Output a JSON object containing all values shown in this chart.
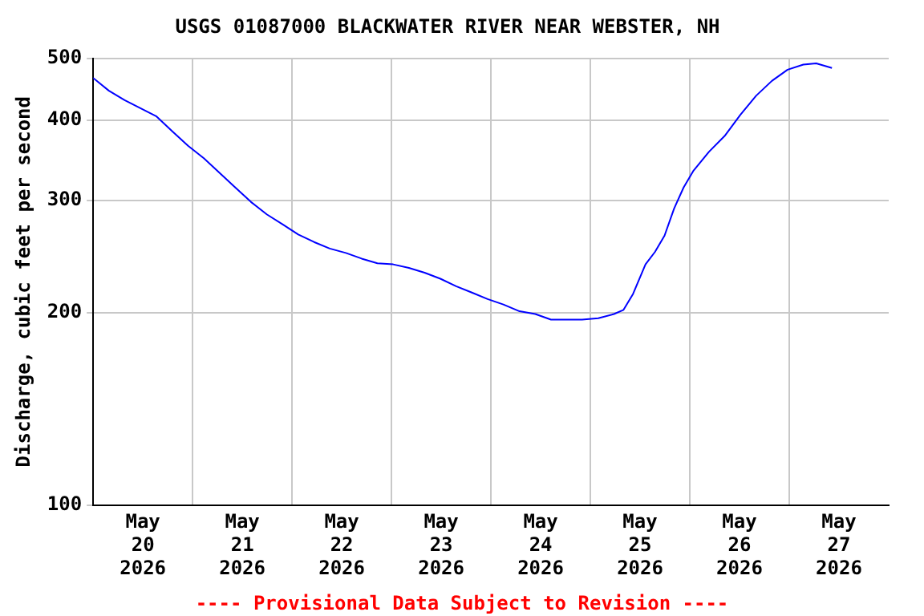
{
  "chart_data": {
    "type": "line",
    "title": "USGS 01087000 BLACKWATER RIVER NEAR WEBSTER, NH",
    "ylabel": "Discharge, cubic feet per second",
    "annotations": [
      "---- Provisional Data Subject to Revision ----"
    ],
    "log": true,
    "grid": true,
    "legend": false,
    "marker": "none",
    "line_style": "solid",
    "xlim": [
      "2026-05-20T00:00",
      "2026-05-28T00:00"
    ],
    "xticks": [
      {
        "value": "2026-05-20T12:00",
        "label": "May\n20\n2026"
      },
      {
        "value": "2026-05-21T00:00",
        "label": null
      },
      {
        "value": "2026-05-21T12:00",
        "label": "May\n21\n2026"
      },
      {
        "value": "2026-05-22T00:00",
        "label": null
      },
      {
        "value": "2026-05-22T12:00",
        "label": "May\n22\n2026"
      },
      {
        "value": "2026-05-23T00:00",
        "label": null
      },
      {
        "value": "2026-05-23T12:00",
        "label": "May\n23\n2026"
      },
      {
        "value": "2026-05-24T00:00",
        "label": null
      },
      {
        "value": "2026-05-24T12:00",
        "label": "May\n24\n2026"
      },
      {
        "value": "2026-05-25T00:00",
        "label": null
      },
      {
        "value": "2026-05-25T12:00",
        "label": "May\n25\n2026"
      },
      {
        "value": "2026-05-26T00:00",
        "label": null
      },
      {
        "value": "2026-05-26T12:00",
        "label": "May\n26\n2026"
      },
      {
        "value": "2026-05-27T00:00",
        "label": null
      },
      {
        "value": "2026-05-27T12:00",
        "label": "May\n27\n2026"
      }
    ],
    "ylim": [
      100,
      500
    ],
    "yticks": [
      100,
      200,
      300,
      400,
      500
    ],
    "x": [
      "2026-05-20T00:00",
      "2026-05-20T03:48",
      "2026-05-20T07:36",
      "2026-05-20T11:24",
      "2026-05-20T15:12",
      "2026-05-20T19:00",
      "2026-05-20T22:54",
      "2026-05-21T02:42",
      "2026-05-21T06:30",
      "2026-05-21T10:18",
      "2026-05-21T14:06",
      "2026-05-21T17:54",
      "2026-05-21T21:42",
      "2026-05-22T01:30",
      "2026-05-22T05:18",
      "2026-05-22T09:06",
      "2026-05-22T13:00",
      "2026-05-22T16:48",
      "2026-05-22T20:36",
      "2026-05-23T00:24",
      "2026-05-23T04:12",
      "2026-05-23T08:00",
      "2026-05-23T11:48",
      "2026-05-23T15:36",
      "2026-05-23T19:24",
      "2026-05-23T23:12",
      "2026-05-24T03:00",
      "2026-05-24T06:54",
      "2026-05-24T10:42",
      "2026-05-24T14:30",
      "2026-05-24T18:18",
      "2026-05-24T22:00",
      "2026-05-25T01:54",
      "2026-05-25T05:42",
      "2026-05-25T08:00",
      "2026-05-25T10:18",
      "2026-05-25T13:18",
      "2026-05-25T15:36",
      "2026-05-25T17:54",
      "2026-05-25T20:12",
      "2026-05-25T22:30",
      "2026-05-26T00:48",
      "2026-05-26T04:36",
      "2026-05-26T08:24",
      "2026-05-26T12:12",
      "2026-05-26T16:00",
      "2026-05-26T19:48",
      "2026-05-26T23:36",
      "2026-05-27T03:24",
      "2026-05-27T06:30",
      "2026-05-27T10:18"
    ],
    "series": [
      {
        "color": "#0000ff",
        "values": [
          466,
          445,
          430,
          418,
          406,
          385,
          365,
          349,
          331,
          314,
          298,
          285,
          275,
          265,
          258,
          252,
          248,
          243,
          239,
          238,
          235,
          231,
          226,
          220,
          215,
          210,
          206,
          201,
          199,
          195,
          195,
          195,
          196,
          199,
          202,
          214,
          238,
          249,
          264,
          291,
          314,
          333,
          357,
          378,
          408,
          437,
          461,
          480,
          489,
          491,
          483
        ]
      }
    ]
  }
}
